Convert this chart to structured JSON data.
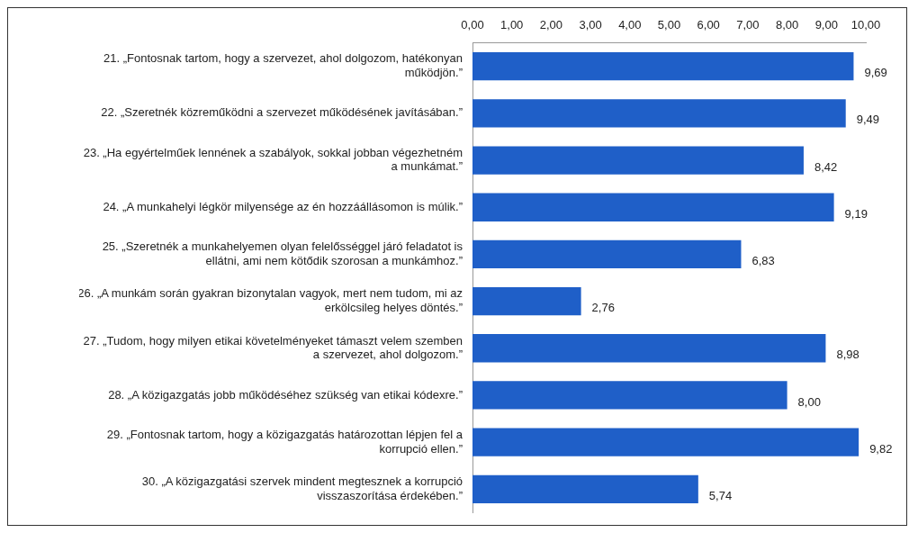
{
  "chart_data": {
    "type": "bar",
    "orientation": "horizontal",
    "categories": [
      "21. „Fontosnak tartom, hogy a szervezet, ahol dolgozom, hatékonyan működjön.”",
      "22. „Szeretnék közreműködni a szervezet működésének javításában.”",
      "23. „Ha egyértelműek lennének a szabályok, sokkal jobban végezhetném a munkámat.”",
      "24. „A munkahelyi légkör milyensége az én hozzáállásomon is múlik.”",
      "25. „Szeretnék a munkahelyemen olyan felelősséggel járó feladatot is ellátni, ami nem kötődik szorosan a munkámhoz.”",
      "26. „A munkám során gyakran bizonytalan vagyok, mert nem tudom, mi az erkölcsileg helyes döntés.”",
      "27. „Tudom, hogy milyen etikai követelményeket támaszt velem szemben a szervezet, ahol dolgozom.”",
      "28. „A közigazgatás jobb működéséhez szükség van etikai kódexre.”",
      "29. „Fontosnak tartom, hogy a közigazgatás határozottan lépjen fel a korrupció ellen.”",
      "30. „A közigazgatási szervek mindent megtesznek a korrupció visszaszorítása érdekében.”"
    ],
    "values": [
      9.69,
      9.49,
      8.42,
      9.19,
      6.83,
      2.76,
      8.98,
      8.0,
      9.82,
      5.74
    ],
    "value_labels": [
      "9,69",
      "9,49",
      "8,42",
      "9,19",
      "6,83",
      "2,76",
      "8,98",
      "8,00",
      "9,82",
      "5,74"
    ],
    "color": "#1f5fc8",
    "xlim": [
      0,
      10
    ],
    "xticks": [
      {
        "value": 0,
        "label": "0,00"
      },
      {
        "value": 1,
        "label": "1,00"
      },
      {
        "value": 2,
        "label": "2,00"
      },
      {
        "value": 3,
        "label": "3,00"
      },
      {
        "value": 4,
        "label": "4,00"
      },
      {
        "value": 5,
        "label": "5,00"
      },
      {
        "value": 6,
        "label": "6,00"
      },
      {
        "value": 7,
        "label": "7,00"
      },
      {
        "value": 8,
        "label": "8,00"
      },
      {
        "value": 9,
        "label": "9,00"
      },
      {
        "value": 10,
        "label": "10,00"
      }
    ],
    "grid": false,
    "legend": false
  }
}
